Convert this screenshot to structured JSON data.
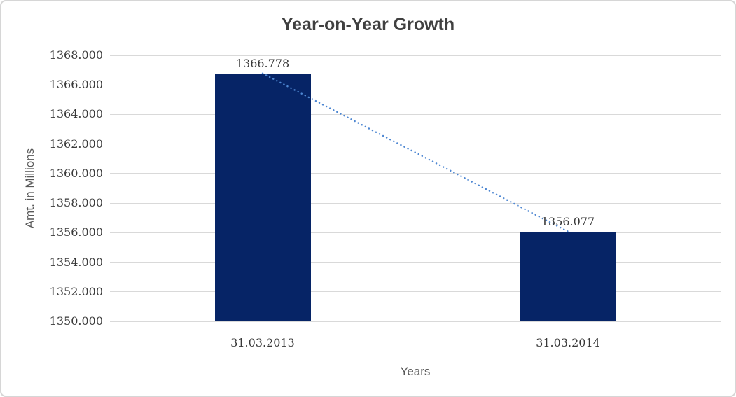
{
  "chart_data": {
    "type": "bar",
    "title": "Year-on-Year Growth",
    "xlabel": "Years",
    "ylabel": "Amt. in Millions",
    "categories": [
      "31.03.2013",
      "31.03.2014"
    ],
    "values": [
      1366.778,
      1356.077
    ],
    "data_labels": [
      "1366.778",
      "1356.077"
    ],
    "ylim": [
      1350,
      1368
    ],
    "ytick_interval": 2,
    "ytick_labels": [
      "1368.000",
      "1366.000",
      "1364.000",
      "1362.000",
      "1360.000",
      "1358.000",
      "1356.000",
      "1354.000",
      "1352.000",
      "1350.000"
    ],
    "grid": true,
    "legend": "none",
    "trendline": {
      "type": "linear",
      "style": "dotted",
      "start_value": 1366.778,
      "end_value": 1356.077
    }
  },
  "colors": {
    "bar_fill": "#062466",
    "trendline": "#4e87d2",
    "gridline": "#d9d9d9",
    "title_text": "#404040",
    "axis_title_text": "#595959",
    "label_text": "#383838",
    "frame_border": "#d6d6d6",
    "background": "#ffffff"
  }
}
